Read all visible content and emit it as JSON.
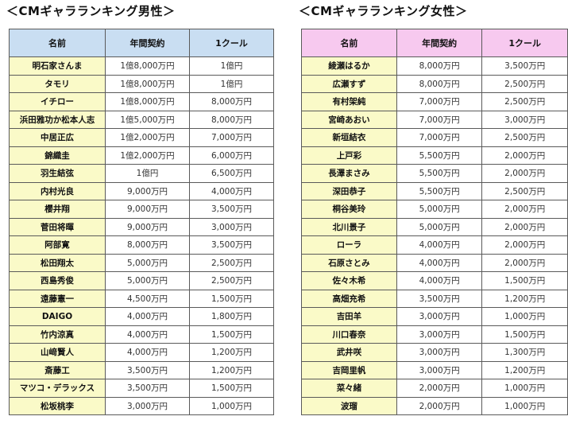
{
  "male": {
    "title": "＜CMギャラランキング男性＞",
    "headers": [
      "名前",
      "年間契約",
      "1クール"
    ],
    "rows": [
      [
        "明石家さんま",
        "1億8,000万円",
        "1億円"
      ],
      [
        "タモリ",
        "1億8,000万円",
        "1億円"
      ],
      [
        "イチロー",
        "1億8,000万円",
        "8,000万円"
      ],
      [
        "浜田雅功か松本人志",
        "1億5,000万円",
        "8,000万円"
      ],
      [
        "中居正広",
        "1億2,000万円",
        "7,000万円"
      ],
      [
        "錦織圭",
        "1億2,000万円",
        "6,000万円"
      ],
      [
        "羽生結弦",
        "1億円",
        "6,500万円"
      ],
      [
        "内村光良",
        "9,000万円",
        "4,000万円"
      ],
      [
        "櫻井翔",
        "9,000万円",
        "3,500万円"
      ],
      [
        "菅田将暉",
        "9,000万円",
        "3,000万円"
      ],
      [
        "阿部寛",
        "8,000万円",
        "3,500万円"
      ],
      [
        "松田翔太",
        "5,000万円",
        "2,500万円"
      ],
      [
        "西島秀俊",
        "5,000万円",
        "2,500万円"
      ],
      [
        "遠藤憲一",
        "4,500万円",
        "1,500万円"
      ],
      [
        "DAIGO",
        "4,000万円",
        "1,800万円"
      ],
      [
        "竹内涼真",
        "4,000万円",
        "1,500万円"
      ],
      [
        "山﨑賢人",
        "4,000万円",
        "1,200万円"
      ],
      [
        "斎藤工",
        "3,500万円",
        "1,200万円"
      ],
      [
        "マツコ・デラックス",
        "3,500万円",
        "1,500万円"
      ],
      [
        "松坂桃李",
        "3,000万円",
        "1,000万円"
      ]
    ]
  },
  "female": {
    "title": "＜CMギャラランキング女性＞",
    "headers": [
      "名前",
      "年間契約",
      "1クール"
    ],
    "rows": [
      [
        "綾瀬はるか",
        "8,000万円",
        "3,500万円"
      ],
      [
        "広瀬すず",
        "8,000万円",
        "2,500万円"
      ],
      [
        "有村架純",
        "7,000万円",
        "2,500万円"
      ],
      [
        "宮崎あおい",
        "7,000万円",
        "3,000万円"
      ],
      [
        "新垣結衣",
        "7,000万円",
        "2,500万円"
      ],
      [
        "上戸彩",
        "5,500万円",
        "2,000万円"
      ],
      [
        "長澤まさみ",
        "5,500万円",
        "2,000万円"
      ],
      [
        "深田恭子",
        "5,500万円",
        "2,500万円"
      ],
      [
        "桐谷美玲",
        "5,000万円",
        "2,000万円"
      ],
      [
        "北川景子",
        "5,000万円",
        "2,000万円"
      ],
      [
        "ローラ",
        "4,000万円",
        "2,000万円"
      ],
      [
        "石原さとみ",
        "4,000万円",
        "2,000万円"
      ],
      [
        "佐々木希",
        "4,000万円",
        "1,500万円"
      ],
      [
        "高畑充希",
        "3,500万円",
        "1,200万円"
      ],
      [
        "吉田羊",
        "3,000万円",
        "1,000万円"
      ],
      [
        "川口春奈",
        "3,000万円",
        "1,500万円"
      ],
      [
        "武井咲",
        "3,000万円",
        "1,300万円"
      ],
      [
        "吉岡里帆",
        "3,000万円",
        "1,200万円"
      ],
      [
        "菜々緒",
        "2,000万円",
        "1,000万円"
      ],
      [
        "波瑠",
        "2,000万円",
        "1,000万円"
      ]
    ]
  },
  "colors": {
    "male_header": "#c9def2",
    "female_header": "#f7c9ef",
    "name_cell": "#fafac8",
    "border": "#5a5a5a"
  }
}
